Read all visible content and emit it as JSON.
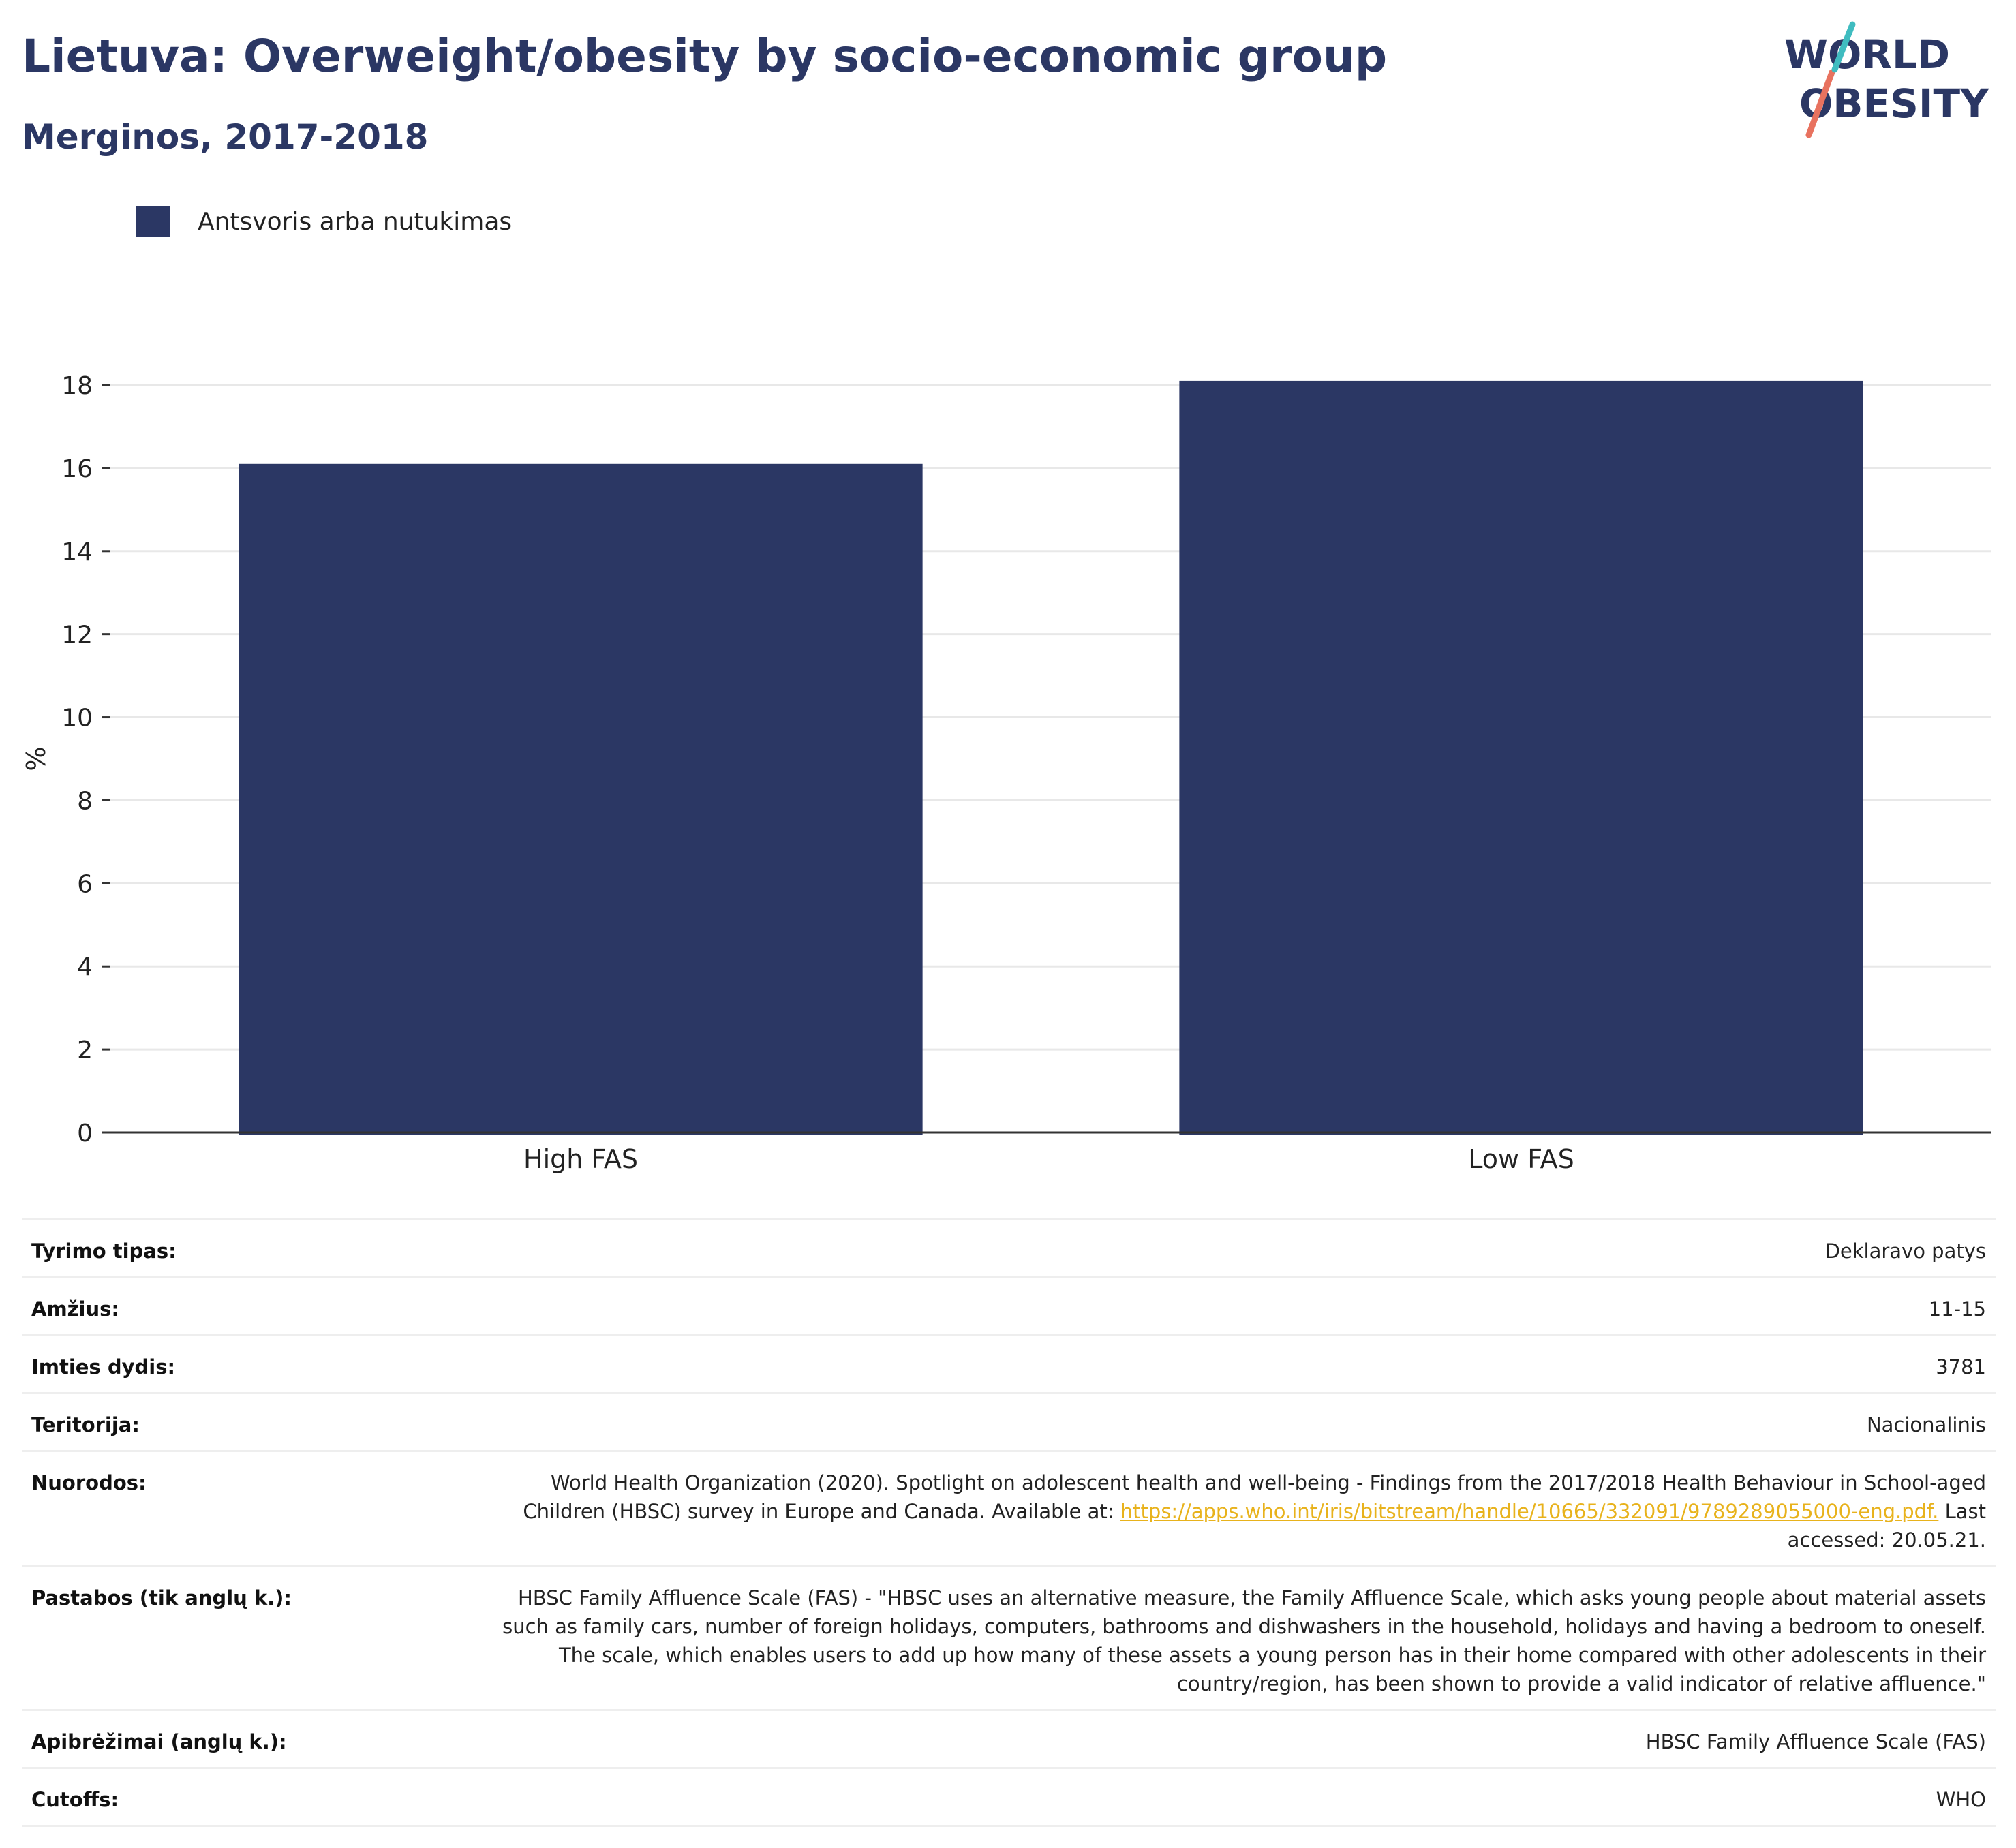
{
  "header": {
    "title": "Lietuva: Overweight/obesity by socio-economic group",
    "subtitle": "Merginos, 2017-2018"
  },
  "logo": {
    "line1": "WORLD",
    "line2": "OBESITY"
  },
  "colors": {
    "bar": "#2b3764",
    "title": "#2b3764",
    "grid": "#e8e8e8",
    "axis": "#333333",
    "link": "#e8b21c",
    "logo_teal": "#3fbcc0",
    "logo_coral": "#e8725f"
  },
  "legend": {
    "label": "Antsvoris arba nutukimas"
  },
  "chart_data": {
    "type": "bar",
    "categories": [
      "High FAS",
      "Low FAS"
    ],
    "series": [
      {
        "name": "Antsvoris arba nutukimas",
        "values": [
          16.1,
          18.1
        ]
      }
    ],
    "ylabel": "%",
    "xlabel": "",
    "ylim": [
      0,
      18
    ],
    "yticks": [
      0,
      2,
      4,
      6,
      8,
      10,
      12,
      14,
      16,
      18
    ],
    "grid": true,
    "legend_position": "top-left"
  },
  "info": {
    "rows": [
      {
        "label": "Tyrimo tipas:",
        "value": "Deklaravo patys"
      },
      {
        "label": "Amžius:",
        "value": "11-15"
      },
      {
        "label": "Imties dydis:",
        "value": "3781"
      },
      {
        "label": "Teritorija:",
        "value": "Nacionalinis"
      }
    ],
    "references": {
      "label": "Nuorodos:",
      "text": "World Health Organization (2020). Spotlight on adolescent health and well-being - Findings from the 2017/2018 Health Behaviour in School-aged Children (HBSC) survey in Europe and Canada. Available at:",
      "link": "https://apps.who.int/iris/bitstream/handle/10665/332091/9789289055000-eng.pdf.",
      "suffix": "Last accessed: 20.05.21."
    },
    "rows2": [
      {
        "label": "Pastabos (tik anglų k.):",
        "value": "HBSC Family Affluence Scale (FAS) - \"HBSC uses an alternative measure, the Family Affluence Scale, which asks young people about material assets such as family cars, number of foreign holidays, computers, bathrooms and dishwashers in the household, holidays and having a bedroom to oneself. The scale, which enables users to add up how many of these assets a young person has in their home compared with other adolescents in their country/region, has been shown to provide a valid indicator of relative affluence.\""
      },
      {
        "label": "Apibrėžimai (anglų k.):",
        "value": "HBSC Family Affluence Scale (FAS)"
      },
      {
        "label": "Cutoffs:",
        "value": "WHO"
      }
    ]
  }
}
